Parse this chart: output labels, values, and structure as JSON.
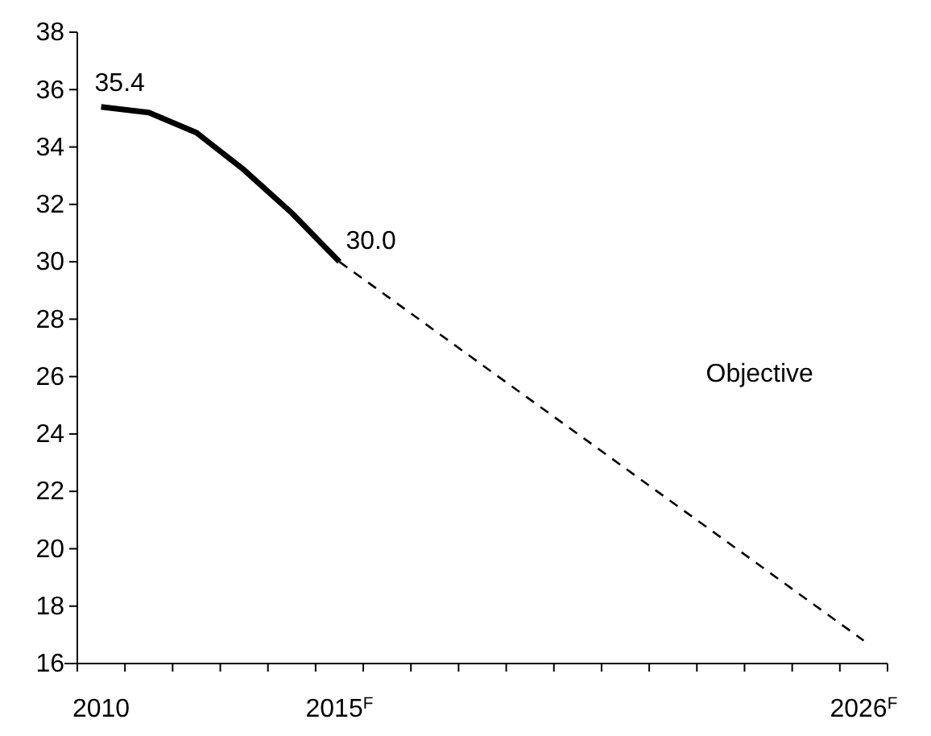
{
  "chart_data": {
    "type": "line",
    "categories": [
      "2010",
      null,
      null,
      null,
      null,
      "2015$^{F}$",
      null,
      null,
      null,
      null,
      null,
      null,
      null,
      null,
      null,
      null,
      "2026$^{F}$"
    ],
    "series": [
      {
        "color": "#000000",
        "line_style": "solid",
        "values": [
          35.4,
          35.2,
          34.5,
          33.2,
          31.7,
          30.0,
          null,
          null,
          null,
          null,
          null,
          null,
          null,
          null,
          null,
          null,
          null
        ],
        "value_labels": [
          "35.4",
          null,
          null,
          null,
          null,
          "30.0",
          null,
          null,
          null,
          null,
          null,
          null,
          null,
          null,
          null,
          null,
          null
        ]
      },
      {
        "name": "Objective",
        "color": "#000000",
        "line_style": "dashed",
        "values": [
          null,
          null,
          null,
          null,
          null,
          30.0,
          28.8,
          27.6,
          26.4,
          25.2,
          24.0,
          22.8,
          21.6,
          20.4,
          19.2,
          18.0,
          16.8
        ]
      }
    ],
    "ylim": [
      16,
      38
    ],
    "yticks": [
      16,
      18,
      20,
      22,
      24,
      26,
      28,
      30,
      32,
      34,
      36,
      38
    ],
    "grid": false,
    "marker": "none"
  }
}
